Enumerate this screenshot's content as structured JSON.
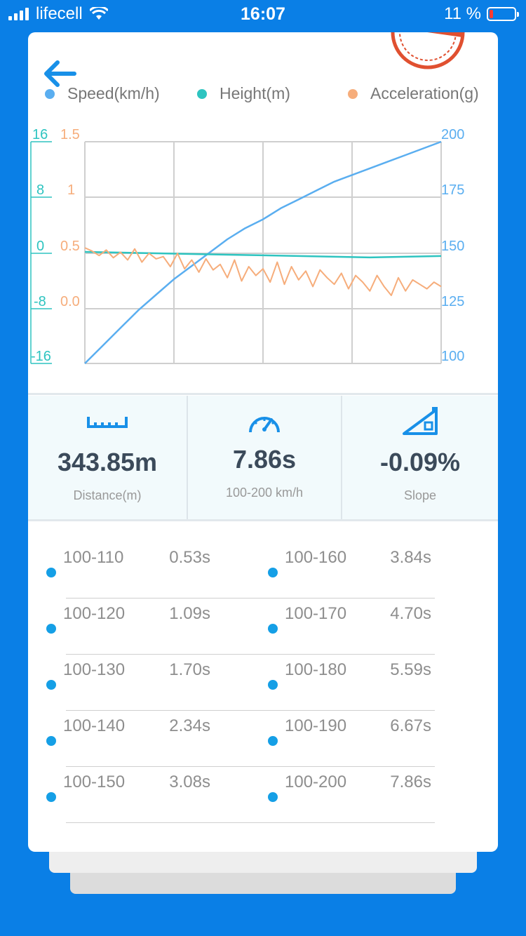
{
  "status_bar": {
    "carrier": "lifecell",
    "time": "16:07",
    "battery": "11 %"
  },
  "legend": [
    {
      "label": "Speed(km/h)",
      "color": "#5aaef0"
    },
    {
      "label": "Height(m)",
      "color": "#2ec4c0"
    },
    {
      "label": "Acceleration(g)",
      "color": "#f6ad7b"
    }
  ],
  "chart_data": {
    "type": "line",
    "grid": true,
    "y_axes": [
      {
        "name": "Height(m)",
        "ticks": [
          "16",
          "8",
          "0",
          "-8",
          "-16"
        ],
        "range": [
          -16,
          16
        ],
        "color": "#2ec4c0"
      },
      {
        "name": "Acceleration(g)",
        "ticks": [
          "1.5",
          "1",
          "0.5",
          "0.0"
        ],
        "range": [
          0,
          1.5
        ],
        "color": "#f6ad7b"
      },
      {
        "name": "Speed(km/h)",
        "ticks": [
          "200",
          "175",
          "150",
          "125",
          "100"
        ],
        "range": [
          100,
          200
        ],
        "color": "#5aaef0"
      }
    ],
    "series": [
      {
        "name": "Speed(km/h)",
        "axis": 2,
        "color": "#5aaef0",
        "x": [
          0,
          0.05,
          0.1,
          0.15,
          0.2,
          0.25,
          0.3,
          0.35,
          0.4,
          0.45,
          0.5,
          0.55,
          0.6,
          0.65,
          0.7,
          0.75,
          0.8,
          0.85,
          0.9,
          0.95,
          1.0
        ],
        "values": [
          100,
          108,
          116,
          124,
          131,
          138,
          144,
          150,
          156,
          161,
          165,
          170,
          174,
          178,
          182,
          185,
          188,
          191,
          194,
          197,
          200
        ]
      },
      {
        "name": "Height(m)",
        "axis": 0,
        "color": "#2ec4c0",
        "x": [
          0,
          0.1,
          0.2,
          0.3,
          0.4,
          0.5,
          0.6,
          0.7,
          0.8,
          0.9,
          1.0
        ],
        "values": [
          0.1,
          0.0,
          -0.1,
          -0.2,
          -0.3,
          -0.4,
          -0.5,
          -0.6,
          -0.7,
          -0.6,
          -0.5
        ]
      },
      {
        "name": "Acceleration(g)",
        "axis": 1,
        "color": "#f6ad7b",
        "x": [
          0,
          0.02,
          0.04,
          0.06,
          0.08,
          0.1,
          0.12,
          0.14,
          0.16,
          0.18,
          0.2,
          0.22,
          0.24,
          0.26,
          0.28,
          0.3,
          0.32,
          0.34,
          0.36,
          0.38,
          0.4,
          0.42,
          0.44,
          0.46,
          0.48,
          0.5,
          0.52,
          0.54,
          0.56,
          0.58,
          0.6,
          0.62,
          0.64,
          0.66,
          0.68,
          0.7,
          0.72,
          0.74,
          0.76,
          0.78,
          0.8,
          0.82,
          0.84,
          0.86,
          0.88,
          0.9,
          0.92,
          0.94,
          0.96,
          0.98,
          1.0
        ],
        "values": [
          0.55,
          0.52,
          0.48,
          0.53,
          0.46,
          0.51,
          0.44,
          0.54,
          0.42,
          0.5,
          0.45,
          0.47,
          0.38,
          0.5,
          0.36,
          0.44,
          0.33,
          0.45,
          0.35,
          0.4,
          0.28,
          0.44,
          0.25,
          0.38,
          0.3,
          0.36,
          0.24,
          0.42,
          0.22,
          0.38,
          0.26,
          0.34,
          0.2,
          0.35,
          0.28,
          0.22,
          0.32,
          0.18,
          0.3,
          0.24,
          0.16,
          0.3,
          0.2,
          0.12,
          0.28,
          0.16,
          0.26,
          0.22,
          0.18,
          0.24,
          0.2
        ]
      }
    ]
  },
  "stats": [
    {
      "value": "343.85m",
      "label": "Distance(m)",
      "icon": "ruler-icon"
    },
    {
      "value": "7.86s",
      "label": "100-200 km/h",
      "icon": "speedometer-icon"
    },
    {
      "value": "-0.09%",
      "label": "Slope",
      "icon": "slope-icon"
    }
  ],
  "splits": [
    {
      "left_label": "100-110",
      "left_value": "0.53s",
      "right_label": "100-160",
      "right_value": "3.84s"
    },
    {
      "left_label": "100-120",
      "left_value": "1.09s",
      "right_label": "100-170",
      "right_value": "4.70s"
    },
    {
      "left_label": "100-130",
      "left_value": "1.70s",
      "right_label": "100-180",
      "right_value": "5.59s"
    },
    {
      "left_label": "100-140",
      "left_value": "2.34s",
      "right_label": "100-190",
      "right_value": "6.67s"
    },
    {
      "left_label": "100-150",
      "left_value": "3.08s",
      "right_label": "100-200",
      "right_value": "7.86s"
    }
  ]
}
